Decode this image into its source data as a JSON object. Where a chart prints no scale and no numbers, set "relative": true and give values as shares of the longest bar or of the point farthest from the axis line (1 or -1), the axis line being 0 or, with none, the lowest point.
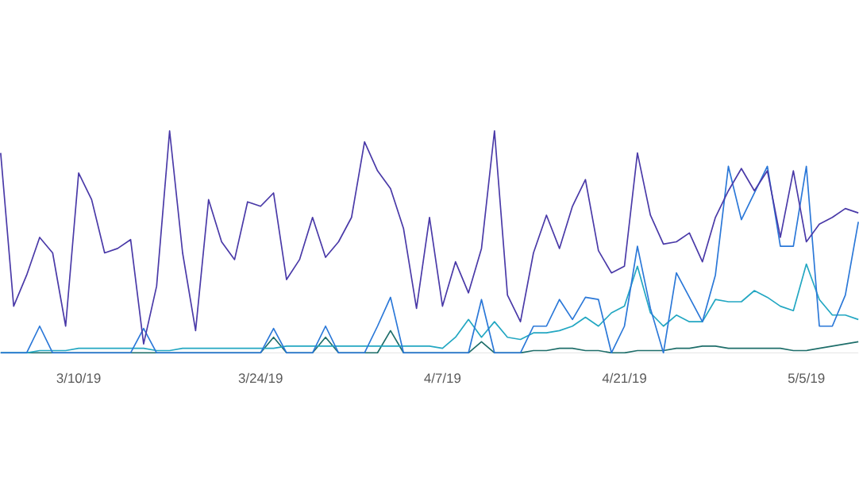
{
  "chart_data": {
    "type": "line",
    "relative": true,
    "x": [
      "2019-03-04",
      "2019-03-05",
      "2019-03-06",
      "2019-03-07",
      "2019-03-08",
      "2019-03-09",
      "2019-03-10",
      "2019-03-11",
      "2019-03-12",
      "2019-03-13",
      "2019-03-14",
      "2019-03-15",
      "2019-03-16",
      "2019-03-17",
      "2019-03-18",
      "2019-03-19",
      "2019-03-20",
      "2019-03-21",
      "2019-03-22",
      "2019-03-23",
      "2019-03-24",
      "2019-03-25",
      "2019-03-26",
      "2019-03-27",
      "2019-03-28",
      "2019-03-29",
      "2019-03-30",
      "2019-03-31",
      "2019-04-01",
      "2019-04-02",
      "2019-04-03",
      "2019-04-04",
      "2019-04-05",
      "2019-04-06",
      "2019-04-07",
      "2019-04-08",
      "2019-04-09",
      "2019-04-10",
      "2019-04-11",
      "2019-04-12",
      "2019-04-13",
      "2019-04-14",
      "2019-04-15",
      "2019-04-16",
      "2019-04-17",
      "2019-04-18",
      "2019-04-19",
      "2019-04-20",
      "2019-04-21",
      "2019-04-22",
      "2019-04-23",
      "2019-04-24",
      "2019-04-25",
      "2019-04-26",
      "2019-04-27",
      "2019-04-28",
      "2019-04-29",
      "2019-04-30",
      "2019-05-01",
      "2019-05-02",
      "2019-05-03",
      "2019-05-04",
      "2019-05-05",
      "2019-05-06",
      "2019-05-07",
      "2019-05-08",
      "2019-05-09"
    ],
    "xlim": [
      "2019-03-04",
      "2019-05-09"
    ],
    "xticks": [
      {
        "value": "2019-03-10",
        "label": "3/10/19"
      },
      {
        "value": "2019-03-24",
        "label": "3/24/19"
      },
      {
        "value": "2019-04-07",
        "label": "4/7/19"
      },
      {
        "value": "2019-04-21",
        "label": "4/21/19"
      },
      {
        "value": "2019-05-05",
        "label": "5/5/19"
      }
    ],
    "series": [
      {
        "color": "#1e6e6a",
        "values": [
          0,
          0,
          0,
          0,
          0,
          0,
          0,
          0,
          0,
          0,
          0,
          0,
          0,
          0,
          0,
          0,
          0,
          0,
          0,
          0,
          0,
          0.07,
          0,
          0,
          0,
          0.07,
          0,
          0,
          0,
          0,
          0.1,
          0,
          0,
          0,
          0,
          0,
          0,
          0.05,
          0,
          0,
          0,
          0.01,
          0.01,
          0.02,
          0.02,
          0.01,
          0.01,
          0,
          0,
          0.01,
          0.01,
          0.01,
          0.02,
          0.02,
          0.03,
          0.03,
          0.02,
          0.02,
          0.02,
          0.02,
          0.02,
          0.01,
          0.01,
          0.02,
          0.03,
          0.04,
          0.05
        ]
      },
      {
        "color": "#23a7c2",
        "values": [
          0,
          0,
          0,
          0.01,
          0.01,
          0.01,
          0.02,
          0.02,
          0.02,
          0.02,
          0.02,
          0.02,
          0.01,
          0.01,
          0.02,
          0.02,
          0.02,
          0.02,
          0.02,
          0.02,
          0.02,
          0.02,
          0.03,
          0.03,
          0.03,
          0.03,
          0.03,
          0.03,
          0.03,
          0.03,
          0.03,
          0.03,
          0.03,
          0.03,
          0.02,
          0.07,
          0.15,
          0.07,
          0.14,
          0.07,
          0.06,
          0.09,
          0.09,
          0.1,
          0.12,
          0.16,
          0.12,
          0.18,
          0.21,
          0.39,
          0.18,
          0.12,
          0.17,
          0.14,
          0.14,
          0.24,
          0.23,
          0.23,
          0.28,
          0.25,
          0.21,
          0.19,
          0.4,
          0.24,
          0.17,
          0.17,
          0.15
        ]
      },
      {
        "color": "#2b78d8",
        "values": [
          0,
          0,
          0,
          0.12,
          0,
          0,
          0,
          0,
          0,
          0,
          0,
          0.11,
          0,
          0,
          0,
          0,
          0,
          0,
          0,
          0,
          0,
          0.11,
          0,
          0,
          0,
          0.12,
          0,
          0,
          0,
          0.12,
          0.25,
          0,
          0,
          0,
          0,
          0,
          0,
          0.24,
          0,
          0,
          0,
          0.12,
          0.12,
          0.24,
          0.15,
          0.25,
          0.24,
          0,
          0.12,
          0.48,
          0.2,
          0,
          0.36,
          0.25,
          0.14,
          0.35,
          0.84,
          0.6,
          0.72,
          0.84,
          0.48,
          0.48,
          0.84,
          0.12,
          0.12,
          0.26,
          0.59
        ]
      },
      {
        "color": "#4a3aa8",
        "values": [
          0.9,
          0.21,
          0.35,
          0.52,
          0.45,
          0.12,
          0.81,
          0.69,
          0.45,
          0.47,
          0.51,
          0.04,
          0.3,
          1.0,
          0.45,
          0.1,
          0.69,
          0.5,
          0.42,
          0.68,
          0.66,
          0.72,
          0.33,
          0.42,
          0.61,
          0.43,
          0.5,
          0.61,
          0.95,
          0.82,
          0.74,
          0.56,
          0.2,
          0.61,
          0.21,
          0.41,
          0.27,
          0.47,
          1.0,
          0.26,
          0.14,
          0.45,
          0.62,
          0.47,
          0.66,
          0.78,
          0.46,
          0.36,
          0.39,
          0.9,
          0.62,
          0.49,
          0.5,
          0.54,
          0.41,
          0.61,
          0.73,
          0.83,
          0.73,
          0.82,
          0.52,
          0.82,
          0.5,
          0.58,
          0.61,
          0.65,
          0.63
        ]
      }
    ]
  }
}
